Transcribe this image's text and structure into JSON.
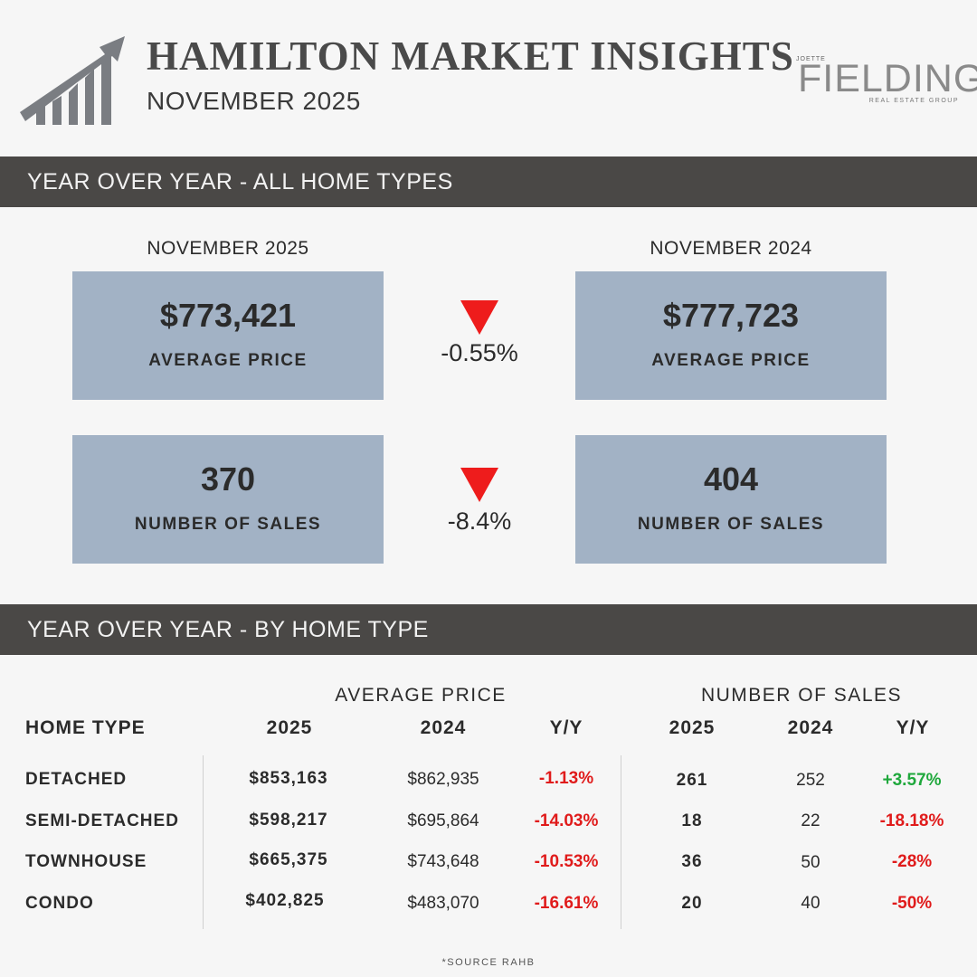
{
  "header": {
    "title": "HAMILTON MARKET INSIGHTS",
    "subtitle": "NOVEMBER 2025",
    "logo": {
      "small_top": "JOETTE",
      "name": "FIELDING",
      "small_bottom": "REAL ESTATE GROUP"
    },
    "icon": "growth-chart-icon"
  },
  "section_all": {
    "heading": "YEAR OVER YEAR - ALL HOME TYPES",
    "left_label": "NOVEMBER 2025",
    "right_label": "NOVEMBER 2024",
    "price": {
      "current": "$773,421",
      "previous": "$777,723",
      "label": "AVERAGE PRICE",
      "change": "-0.55%"
    },
    "sales": {
      "current": "370",
      "previous": "404",
      "label": "NUMBER OF SALES",
      "change": "-8.4%"
    }
  },
  "section_type": {
    "heading": "YEAR OVER YEAR - BY HOME TYPE",
    "group_price": "AVERAGE PRICE",
    "group_sales": "NUMBER OF SALES",
    "col_home_type": "HOME TYPE",
    "col_2025": "2025",
    "col_2024": "2024",
    "col_yy": "Y/Y",
    "rows": [
      {
        "type": "DETACHED",
        "price_2025": "$853,163",
        "price_2024": "$862,935",
        "price_yy": "-1.13%",
        "sales_2025": "261",
        "sales_2024": "252",
        "sales_yy": "+3.57%"
      },
      {
        "type": "SEMI-DETACHED",
        "price_2025": "$598,217",
        "price_2024": "$695,864",
        "price_yy": "-14.03%",
        "sales_2025": "18",
        "sales_2024": "22",
        "sales_yy": "-18.18%"
      },
      {
        "type": "TOWNHOUSE",
        "price_2025": "$665,375",
        "price_2024": "$743,648",
        "price_yy": "-10.53%",
        "sales_2025": "36",
        "sales_2024": "50",
        "sales_yy": "-28%"
      },
      {
        "type": "CONDO",
        "price_2025": "$402,825",
        "price_2024": "$483,070",
        "price_yy": "-16.61%",
        "sales_2025": "20",
        "sales_2024": "40",
        "sales_yy": "-50%"
      }
    ]
  },
  "footer": {
    "source": "*SOURCE RAHB"
  },
  "colors": {
    "band": "#4a4846",
    "card": "#a2b2c5",
    "negative": "#e01b1b",
    "positive": "#1fa83c",
    "down_arrow": "#ee1c1c"
  }
}
